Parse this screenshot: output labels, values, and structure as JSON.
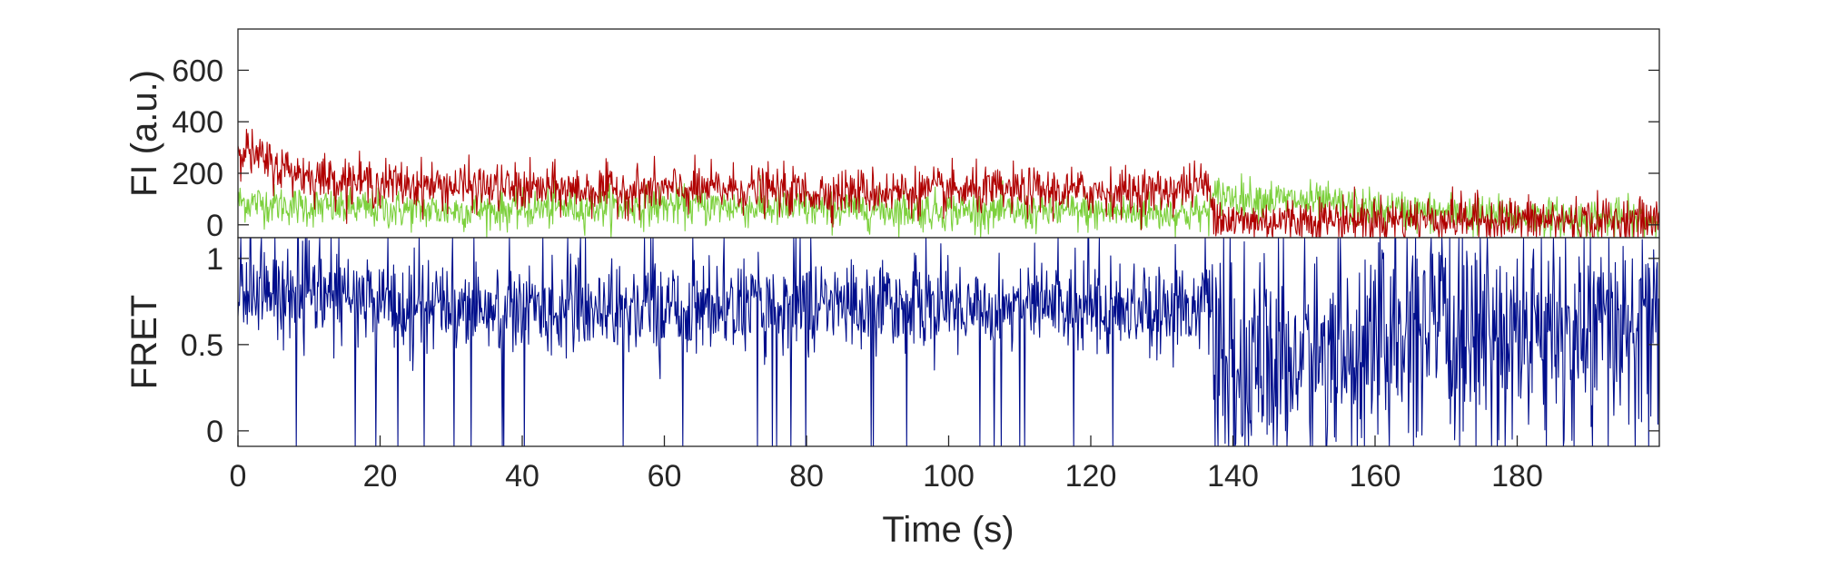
{
  "chart_data": [
    {
      "type": "line",
      "panel": "top",
      "title": "",
      "xlabel": "",
      "ylabel": "FI (a.u.)",
      "xlim": [
        0,
        200
      ],
      "ylim": [
        -50,
        760
      ],
      "yticks": [
        0,
        200,
        400,
        600
      ],
      "ytick_labels": [
        "0",
        "200",
        "400",
        "600"
      ],
      "grid": false,
      "legend": "none",
      "series": [
        {
          "color": "#b00000",
          "x": [
            0,
            2,
            5,
            10,
            15,
            20,
            25,
            30,
            40,
            50,
            60,
            70,
            80,
            90,
            100,
            110,
            120,
            130,
            136,
            138,
            140,
            150,
            160,
            170,
            180,
            190,
            200
          ],
          "values": [
            320,
            270,
            230,
            190,
            175,
            160,
            155,
            150,
            140,
            135,
            135,
            140,
            125,
            130,
            130,
            130,
            130,
            130,
            160,
            40,
            10,
            20,
            20,
            25,
            20,
            15,
            15
          ]
        },
        {
          "color": "#7cd03c",
          "x": [
            0,
            5,
            10,
            20,
            30,
            40,
            50,
            60,
            70,
            80,
            90,
            100,
            110,
            120,
            130,
            136,
            138,
            140,
            150,
            160,
            170,
            180,
            190,
            200
          ],
          "values": [
            90,
            80,
            70,
            60,
            55,
            60,
            70,
            75,
            70,
            60,
            60,
            55,
            50,
            50,
            45,
            45,
            120,
            110,
            90,
            60,
            45,
            30,
            25,
            20
          ]
        }
      ]
    },
    {
      "type": "line",
      "panel": "bottom",
      "title": "",
      "xlabel": "Time (s)",
      "ylabel": "FRET",
      "xlim": [
        0,
        200
      ],
      "ylim": [
        -0.09,
        1.12
      ],
      "xticks": [
        0,
        20,
        40,
        60,
        80,
        100,
        120,
        140,
        160,
        180
      ],
      "xtick_labels": [
        "0",
        "20",
        "40",
        "60",
        "80",
        "100",
        "120",
        "140",
        "160",
        "180"
      ],
      "yticks": [
        0,
        0.5,
        1
      ],
      "ytick_labels": [
        "0",
        "0.5",
        "1"
      ],
      "grid": false,
      "legend": "none",
      "series": [
        {
          "color": "#000e8c",
          "x": [
            0,
            10,
            20,
            30,
            40,
            50,
            60,
            70,
            80,
            90,
            100,
            110,
            120,
            130,
            136,
            138,
            140,
            150,
            160,
            170,
            180,
            190,
            200
          ],
          "values": [
            0.8,
            0.78,
            0.75,
            0.72,
            0.7,
            0.72,
            0.7,
            0.72,
            0.72,
            0.74,
            0.72,
            0.74,
            0.72,
            0.72,
            0.74,
            0.45,
            0.3,
            0.42,
            0.5,
            0.55,
            0.55,
            0.55,
            0.55
          ]
        }
      ]
    }
  ]
}
